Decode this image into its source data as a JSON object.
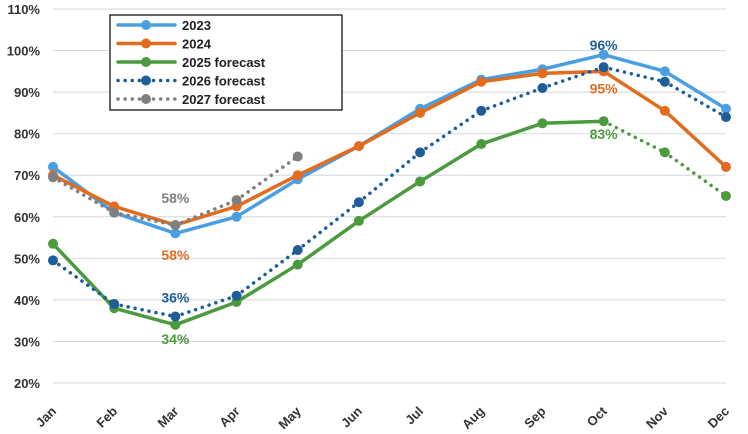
{
  "chart_data": {
    "type": "line",
    "categories": [
      "Jan",
      "Feb",
      "Mar",
      "Apr",
      "May",
      "Jun",
      "Jul",
      "Aug",
      "Sep",
      "Oct",
      "Nov",
      "Dec"
    ],
    "ylim": [
      20,
      110
    ],
    "yticks": [
      "20%",
      "30%",
      "40%",
      "50%",
      "60%",
      "70%",
      "80%",
      "90%",
      "100%",
      "110%"
    ],
    "grid": "horizontal",
    "legend": "top-left",
    "series": [
      {
        "name": "2023",
        "color": "#4a9fe3",
        "style": "solid",
        "values": [
          72,
          61,
          56,
          60,
          69,
          77,
          86,
          93,
          95.5,
          99,
          95,
          86
        ]
      },
      {
        "name": "2024",
        "color": "#e26b1e",
        "style": "solid",
        "values": [
          70,
          62.5,
          58,
          62.5,
          70,
          77,
          85,
          92.5,
          94.5,
          95,
          85.5,
          72
        ]
      },
      {
        "name": "2025 forecast",
        "color": "#4c9a3e",
        "style": "solid",
        "dotted_from": "Oct",
        "values": [
          53.5,
          38,
          34,
          39.5,
          48.5,
          59,
          68.5,
          77.5,
          82.5,
          83,
          75.5,
          65
        ]
      },
      {
        "name": "2026 forecast",
        "color": "#1f5d99",
        "style": "dotted",
        "values": [
          49.5,
          39,
          36,
          41,
          52,
          63.5,
          75.5,
          85.5,
          91,
          96,
          92.5,
          84
        ]
      },
      {
        "name": "2027 forecast",
        "color": "#7f7f7f",
        "style": "dotted",
        "values": [
          69.5,
          61,
          58,
          64,
          74.5,
          null,
          null,
          null,
          null,
          null,
          null,
          null
        ]
      }
    ],
    "annotations": [
      {
        "text": "58%",
        "series": "2027 forecast",
        "month": "Mar",
        "color": "#7f7f7f"
      },
      {
        "text": "58%",
        "series": "2024",
        "month": "Mar",
        "color": "#e26b1e"
      },
      {
        "text": "36%",
        "series": "2026 forecast",
        "month": "Mar",
        "color": "#1f5d99"
      },
      {
        "text": "34%",
        "series": "2025 forecast",
        "month": "Mar",
        "color": "#4c9a3e"
      },
      {
        "text": "96%",
        "series": "2026 forecast",
        "month": "Oct",
        "color": "#1f5d99"
      },
      {
        "text": "95%",
        "series": "2024",
        "month": "Oct",
        "color": "#e26b1e"
      },
      {
        "text": "83%",
        "series": "2025 forecast",
        "month": "Oct",
        "color": "#4c9a3e"
      }
    ]
  }
}
